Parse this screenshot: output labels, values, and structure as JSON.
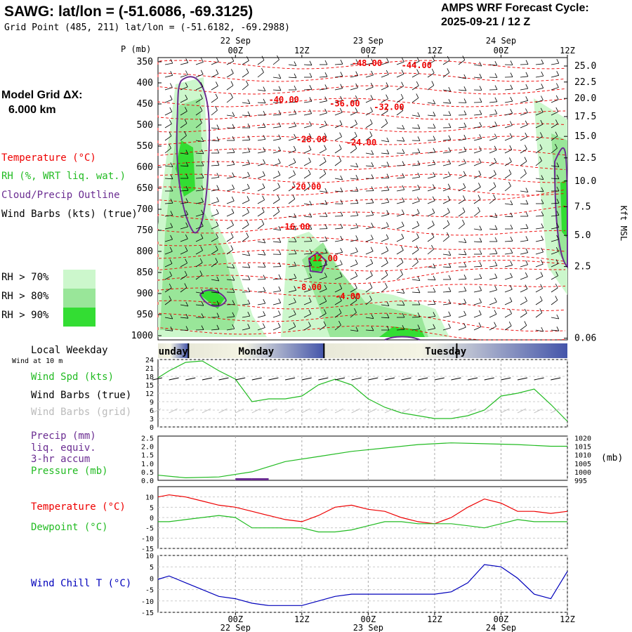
{
  "header": {
    "station_title": "SAWG:  lat/lon = (-51.6086, -69.3125)",
    "grid_point": "Grid Point (485, 211) lat/lon = (-51.6182, -69.2988)",
    "cycle_label": "AMPS WRF Forecast Cycle:",
    "cycle_value": "2025-09-21 / 12  Z"
  },
  "legend": {
    "model_grid_label": "Model Grid ΔX:",
    "model_grid_value": "6.000 km",
    "temperature": "Temperature (°C)",
    "rh": "RH (%, WRT liq. wat.)",
    "cloud": "Cloud/Precip Outline",
    "wind_barbs": "Wind Barbs (kts) (true)",
    "rh_levels": [
      {
        "label": "RH > 70%",
        "color": "#ccf7cc"
      },
      {
        "label": "RH > 80%",
        "color": "#99e699"
      },
      {
        "label": "RH > 90%",
        "color": "#33dd33"
      }
    ]
  },
  "colors": {
    "temperature": "#ee0000",
    "rh": "#22bb22",
    "cloud": "#6a2c91",
    "wind_chill": "#0000bb",
    "day_band": "#4455aa"
  },
  "time_axis": {
    "top_ticks": [
      "22 Sep",
      "00Z",
      "12Z",
      "23 Sep",
      "00Z",
      "12Z",
      "24 Sep",
      "00Z",
      "12Z"
    ],
    "ticks": [
      {
        "label": "00Z",
        "date": "22 Sep",
        "hour": 12
      },
      {
        "label": "12Z",
        "date": "",
        "hour": 24
      },
      {
        "label": "00Z",
        "date": "23 Sep",
        "hour": 36
      },
      {
        "label": "12Z",
        "date": "",
        "hour": 48
      },
      {
        "label": "00Z",
        "date": "24 Sep",
        "hour": 60
      },
      {
        "label": "12Z",
        "date": "",
        "hour": 72
      }
    ],
    "range_hours": [
      -2,
      72
    ]
  },
  "weekday_band": {
    "label": "Local Weekday",
    "days": [
      {
        "name": "unday",
        "start": -2,
        "end": 3.5
      },
      {
        "name": "Monday",
        "start": 3.5,
        "end": 28
      },
      {
        "name": "Tuesday",
        "start": 28,
        "end": 72
      }
    ]
  },
  "chart_data": [
    {
      "type": "heatmap",
      "name": "cross-section",
      "y_axis_label": "P (mb)",
      "y_axis_right_label": "Kft MSL",
      "pressure_ticks": [
        350,
        400,
        450,
        500,
        550,
        600,
        650,
        700,
        750,
        800,
        850,
        900,
        950,
        1000
      ],
      "height_ticks": [
        {
          "label": "25.0",
          "p": 360
        },
        {
          "label": "22.5",
          "p": 398
        },
        {
          "label": "20.0",
          "p": 437
        },
        {
          "label": "17.5",
          "p": 480
        },
        {
          "label": "15.0",
          "p": 527
        },
        {
          "label": "12.5",
          "p": 578
        },
        {
          "label": "10.0",
          "p": 633
        },
        {
          "label": "7.5",
          "p": 694
        },
        {
          "label": "5.0",
          "p": 762
        },
        {
          "label": "2.5",
          "p": 836
        },
        {
          "label": "0.06",
          "p": 1006
        }
      ],
      "temperature_labels": [
        {
          "text": "-48.00",
          "hour": 33,
          "p": 360
        },
        {
          "text": "-44.00",
          "hour": 42,
          "p": 365
        },
        {
          "text": "-40.00",
          "hour": 18,
          "p": 447
        },
        {
          "text": "-36.00",
          "hour": 29,
          "p": 456
        },
        {
          "text": "-32.00",
          "hour": 37,
          "p": 464
        },
        {
          "text": "-28.00",
          "hour": 23,
          "p": 541
        },
        {
          "text": "-24.00",
          "hour": 32,
          "p": 548
        },
        {
          "text": "-20.00",
          "hour": 22,
          "p": 653
        },
        {
          "text": "-16.00",
          "hour": 20,
          "p": 748
        },
        {
          "text": "-12.00",
          "hour": 25,
          "p": 823
        },
        {
          "text": "-8.00",
          "hour": 23,
          "p": 892
        },
        {
          "text": "-4.00",
          "hour": 30,
          "p": 913
        }
      ]
    },
    {
      "type": "line",
      "name": "wind",
      "ylabel_lines": [
        "Wind Spd (kts)",
        "Wind Barbs (true)",
        "Wind Barbs (grid)"
      ],
      "small_label_1": "Wind at 10 m",
      "y_ticks": [
        0,
        3,
        6,
        9,
        12,
        15,
        18,
        21,
        24
      ],
      "ylim": [
        0,
        24
      ],
      "series": [
        {
          "x": [
            -2,
            0,
            3,
            6,
            9,
            12,
            15,
            18,
            21,
            24,
            27,
            30,
            33,
            36,
            39,
            42,
            45,
            48,
            51,
            54,
            57,
            60,
            63,
            66,
            69,
            72
          ],
          "values": [
            17.5,
            20,
            23,
            23.5,
            20,
            17,
            9,
            10,
            10,
            11,
            15,
            17,
            15,
            10,
            7,
            5,
            4,
            3,
            3,
            4,
            6,
            11,
            12,
            13.5,
            8,
            2
          ]
        }
      ]
    },
    {
      "type": "line",
      "name": "pressure",
      "ylabel_lines": [
        "Precip (mm)",
        "liq. equiv.",
        "3-hr accum",
        "Pressure (mb)"
      ],
      "right_axis_label": "(mb)",
      "left_ticks": [
        "0.0",
        "0.5",
        "1.0",
        "1.5",
        "2.0",
        "2.5"
      ],
      "right_ticks": [
        "995",
        "1000",
        "1005",
        "1010",
        "1015",
        "1020"
      ],
      "ylim": [
        995,
        1021
      ],
      "series": [
        {
          "x": [
            -2,
            3,
            9,
            15,
            21,
            27,
            33,
            39,
            45,
            51,
            57,
            63,
            69,
            72
          ],
          "values": [
            998,
            996.5,
            997,
            1000,
            1006,
            1009,
            1012,
            1014,
            1016,
            1017,
            1016.5,
            1016,
            1015,
            1015
          ]
        }
      ],
      "precip": [
        {
          "hour": 12,
          "value": 0.1
        },
        {
          "hour": 15,
          "value": 0.1
        }
      ]
    },
    {
      "type": "line",
      "name": "temperature",
      "ylabel_lines": [
        "Temperature (°C)",
        "Dewpoint (°C)"
      ],
      "y_ticks": [
        -15,
        -10,
        -5,
        0,
        5,
        10
      ],
      "ylim": [
        -15,
        15
      ],
      "series": [
        {
          "name": "Temperature",
          "x": [
            -2,
            0,
            3,
            6,
            9,
            12,
            15,
            18,
            21,
            24,
            27,
            30,
            33,
            36,
            39,
            42,
            45,
            48,
            51,
            54,
            57,
            60,
            63,
            66,
            69,
            72
          ],
          "values": [
            10,
            11,
            10,
            8,
            6,
            5,
            3,
            1,
            -1,
            -2,
            1,
            5,
            6,
            4,
            3,
            0,
            -2,
            -3,
            0,
            5,
            9,
            7,
            3,
            3,
            2,
            3
          ]
        },
        {
          "name": "Dewpoint",
          "x": [
            -2,
            0,
            3,
            6,
            9,
            12,
            15,
            18,
            21,
            24,
            27,
            30,
            33,
            36,
            39,
            42,
            45,
            48,
            51,
            54,
            57,
            60,
            63,
            66,
            69,
            72
          ],
          "values": [
            -2,
            -2,
            -1,
            0,
            1,
            0,
            -5,
            -5,
            -5,
            -5,
            -7,
            -7,
            -6,
            -4,
            -2,
            -2,
            -3,
            -3,
            -3,
            -4,
            -5,
            -3,
            -1,
            -2,
            -2,
            -2
          ]
        }
      ]
    },
    {
      "type": "line",
      "name": "wind_chill",
      "ylabel_lines": [
        "Wind Chill T (°C)"
      ],
      "y_ticks": [
        -15,
        -10,
        -5,
        0,
        5,
        10
      ],
      "ylim": [
        -15,
        10
      ],
      "series": [
        {
          "x": [
            -2,
            0,
            3,
            6,
            9,
            12,
            15,
            18,
            21,
            24,
            27,
            30,
            33,
            36,
            39,
            42,
            45,
            48,
            51,
            54,
            57,
            60,
            63,
            66,
            69,
            72
          ],
          "values": [
            -0.5,
            1,
            -2,
            -5,
            -8,
            -9,
            -11,
            -12,
            -12,
            -12,
            -10,
            -8,
            -7,
            -7,
            -7,
            -7,
            -7,
            -7,
            -6,
            -2,
            6,
            5,
            0,
            -7,
            -9,
            3
          ]
        }
      ]
    }
  ]
}
